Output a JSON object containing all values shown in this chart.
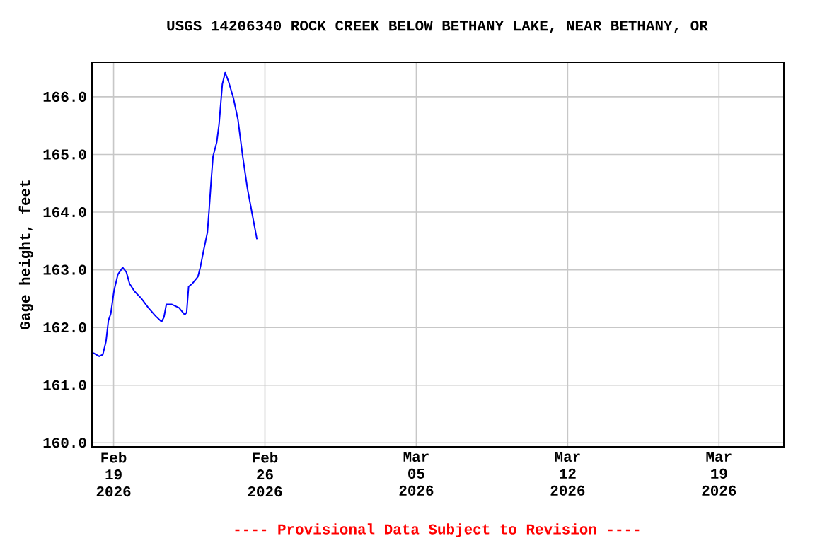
{
  "chart_data": {
    "type": "line",
    "title": "USGS 14206340 ROCK CREEK BELOW BETHANY LAKE, NEAR BETHANY, OR",
    "ylabel": "Gage height, feet",
    "annotations": [
      "---- Provisional Data Subject to Revision ----"
    ],
    "x": [
      "2026-02-18T01:30",
      "2026-02-18T08:00",
      "2026-02-18T12:00",
      "2026-02-18T15:36",
      "2026-02-18T18:14",
      "2026-02-18T20:53",
      "2026-02-19T00:29",
      "2026-02-19T04:48",
      "2026-02-19T10:05",
      "2026-02-19T14:10",
      "2026-02-19T17:46",
      "2026-02-19T23:02",
      "2026-02-20T06:58",
      "2026-02-20T14:38",
      "2026-02-20T22:34",
      "2026-02-21T05:17",
      "2026-02-21T07:55",
      "2026-02-21T10:34",
      "2026-02-21T16:48",
      "2026-02-22T00:43",
      "2026-02-22T06:58",
      "2026-02-22T09:07",
      "2026-02-22T11:17",
      "2026-02-22T15:22",
      "2026-02-22T21:36",
      "2026-02-23T00:14",
      "2026-02-23T03:50",
      "2026-02-23T08:10",
      "2026-02-23T10:05",
      "2026-02-23T12:14",
      "2026-02-23T14:24",
      "2026-02-23T18:29",
      "2026-02-23T21:07",
      "2026-02-24T00:43",
      "2026-02-24T03:50",
      "2026-02-24T07:41",
      "2026-02-24T12:58",
      "2026-02-24T18:00",
      "2026-02-24T23:17",
      "2026-02-25T04:34",
      "2026-02-25T09:50",
      "2026-02-25T15:07"
    ],
    "series": [
      {
        "color": "#0000ff",
        "values": [
          161.56,
          161.5,
          161.53,
          161.76,
          162.12,
          162.24,
          162.64,
          162.92,
          163.04,
          162.96,
          162.76,
          162.63,
          162.5,
          162.34,
          162.2,
          162.1,
          162.18,
          162.4,
          162.4,
          162.34,
          162.22,
          162.26,
          162.71,
          162.76,
          162.88,
          163.04,
          163.33,
          163.65,
          164.05,
          164.53,
          164.97,
          165.21,
          165.53,
          166.22,
          166.42,
          166.26,
          165.98,
          165.61,
          164.97,
          164.41,
          163.97,
          163.53
        ]
      }
    ],
    "xlim": [
      "2026-02-18T00:00",
      "2026-03-22T00:00"
    ],
    "xticks": [
      {
        "value": "2026-02-19",
        "label": "Feb 19 2026"
      },
      {
        "value": "2026-02-26",
        "label": "Feb 26 2026"
      },
      {
        "value": "2026-03-05",
        "label": "Mar 05 2026"
      },
      {
        "value": "2026-03-12",
        "label": "Mar 12 2026"
      },
      {
        "value": "2026-03-19",
        "label": "Mar 19 2026"
      }
    ],
    "ylim": [
      159.93,
      166.6
    ],
    "yticks": [
      {
        "value": 160,
        "label": "160.0"
      },
      {
        "value": 161,
        "label": "161.0"
      },
      {
        "value": 162,
        "label": "162.0"
      },
      {
        "value": 163,
        "label": "163.0"
      },
      {
        "value": 164,
        "label": "164.0"
      },
      {
        "value": 165,
        "label": "165.0"
      },
      {
        "value": 166,
        "label": "166.0"
      }
    ],
    "grid": true,
    "marker": "none",
    "line_style": "solid"
  }
}
